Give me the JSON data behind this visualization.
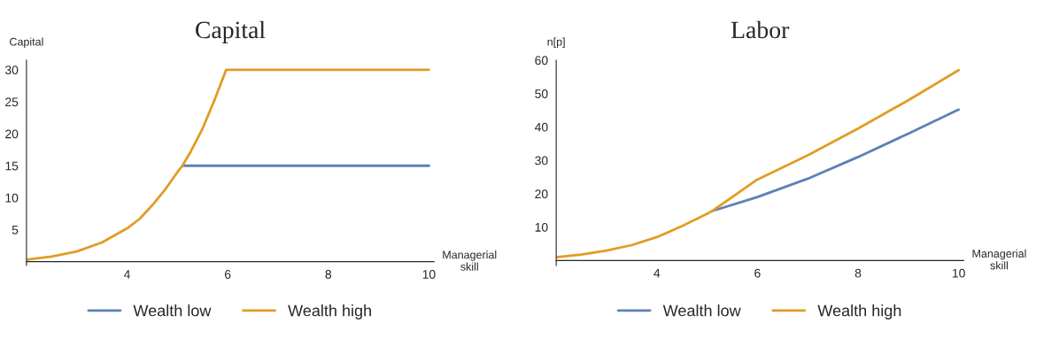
{
  "chart_data": [
    {
      "type": "line",
      "title": "Capital",
      "xlabel": "Managerial\nskill",
      "ylabel": "Capital",
      "xlim": [
        2,
        10.1
      ],
      "ylim": [
        -0.6,
        31.5
      ],
      "xticks": [
        {
          "value": 2,
          "label": null
        },
        4,
        6,
        8,
        10
      ],
      "yticks": [
        5,
        10,
        15,
        20,
        25,
        30
      ],
      "legend": "bottom",
      "grid": false,
      "series": [
        {
          "name": "Wealth low",
          "color": "#5e81b5",
          "x": [
            5.1,
            10
          ],
          "values": [
            15,
            15
          ]
        },
        {
          "name": "Wealth high",
          "color": "#e19c24",
          "x": [
            2,
            2.5,
            3,
            3.5,
            4,
            4.25,
            4.5,
            4.75,
            5,
            5.1,
            5.25,
            5.5,
            5.75,
            5.97,
            10
          ],
          "values": [
            0.3,
            0.8,
            1.6,
            3.0,
            5.2,
            6.7,
            8.8,
            11.2,
            14,
            15,
            17,
            20.8,
            25.5,
            30,
            30
          ]
        }
      ]
    },
    {
      "type": "line",
      "title": "Labor",
      "xlabel": "Managerial\nskill",
      "ylabel": "n[p]",
      "xlim": [
        2,
        10.1
      ],
      "ylim": [
        -1.5,
        60
      ],
      "xticks": [
        {
          "value": 2,
          "label": null
        },
        4,
        6,
        8,
        10
      ],
      "yticks": [
        10,
        20,
        30,
        40,
        50,
        60
      ],
      "legend": "bottom",
      "grid": false,
      "series": [
        {
          "name": "Wealth low",
          "color": "#5e81b5",
          "x": [
            5.1,
            6,
            7,
            8,
            9,
            10
          ],
          "values": [
            14.8,
            19,
            24.5,
            31,
            38,
            45.2
          ]
        },
        {
          "name": "Wealth high",
          "color": "#e19c24",
          "x": [
            2,
            2.5,
            3,
            3.5,
            4,
            4.5,
            5,
            5.1,
            5.5,
            5.97,
            7,
            8,
            9,
            10
          ],
          "values": [
            1,
            1.8,
            3,
            4.6,
            7,
            10.3,
            14,
            14.8,
            19,
            24,
            31.5,
            39.5,
            48,
            57
          ]
        }
      ]
    }
  ]
}
